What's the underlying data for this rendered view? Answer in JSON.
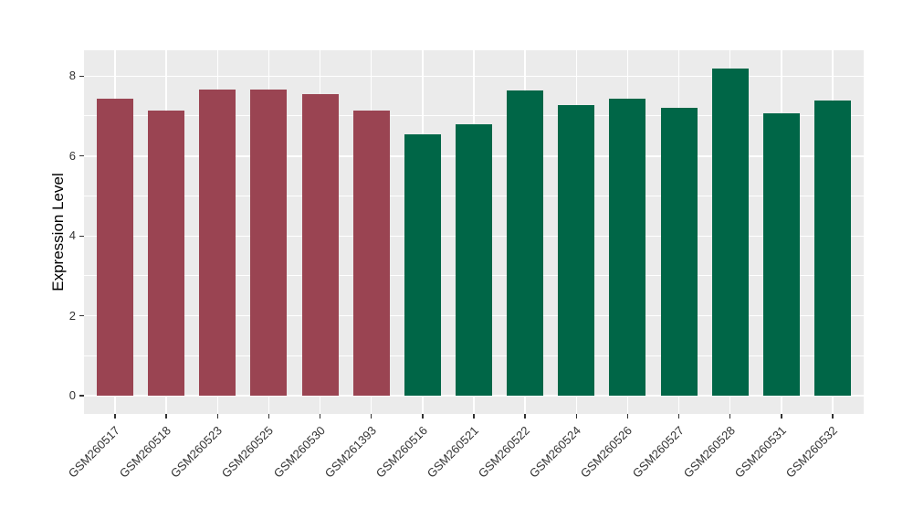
{
  "chart_data": {
    "type": "bar",
    "ylabel": "Expression Level",
    "xlabel": "",
    "categories": [
      "GSM260517",
      "GSM260518",
      "GSM260523",
      "GSM260525",
      "GSM260530",
      "GSM261393",
      "GSM260516",
      "GSM260521",
      "GSM260522",
      "GSM260524",
      "GSM260526",
      "GSM260527",
      "GSM260528",
      "GSM260531",
      "GSM260532"
    ],
    "values": [
      7.44,
      7.14,
      7.67,
      7.67,
      7.55,
      7.14,
      6.55,
      6.8,
      7.65,
      7.27,
      7.44,
      7.2,
      8.2,
      7.06,
      7.4
    ],
    "groups": [
      "group1",
      "group1",
      "group1",
      "group1",
      "group1",
      "group1",
      "group2",
      "group2",
      "group2",
      "group2",
      "group2",
      "group2",
      "group2",
      "group2",
      "group2"
    ],
    "group_colors": {
      "group1": "#9A4452",
      "group2": "#006647"
    },
    "yticks": [
      0,
      2,
      4,
      6,
      8
    ],
    "ytick_labels": [
      "0",
      "2",
      "4",
      "6",
      "8"
    ],
    "minor_yticks": [
      1,
      3,
      5,
      7
    ],
    "ylim": [
      0,
      8.65
    ],
    "grid": "on",
    "legend": "none",
    "colors": {
      "panel_background": "#EBEBEB",
      "grid": "#FFFFFF",
      "axis_text": "#333333",
      "tick": "#333333",
      "figure_background": "#FFFFFF"
    }
  }
}
